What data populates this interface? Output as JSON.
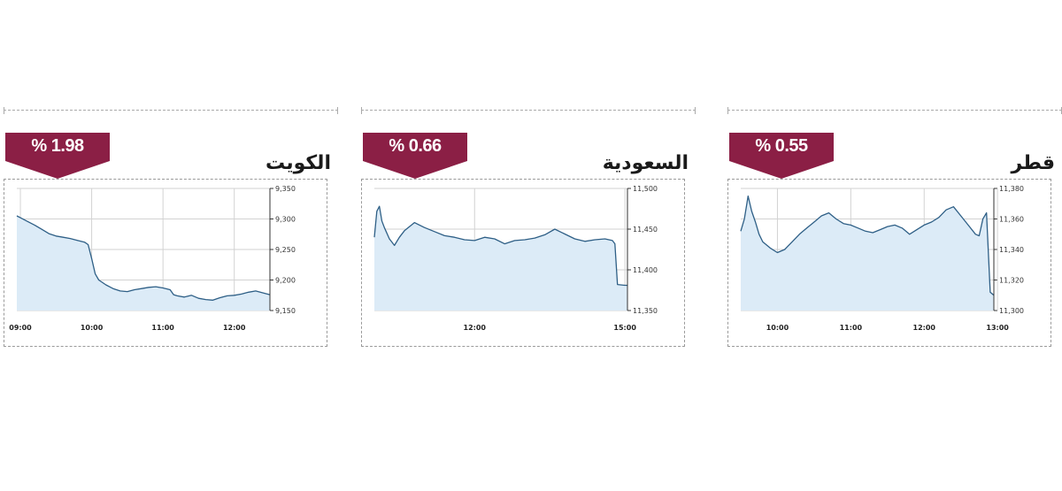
{
  "colors": {
    "badge": "#8b1f45",
    "line": "#2e5f86",
    "fill": "#dcebf7",
    "grid": "#d2d2d2",
    "axis": "#333333"
  },
  "chart_data": [
    {
      "type": "area",
      "title": "الكويت",
      "change_label": "% 1.98",
      "y_ticks": [
        "9,350",
        "9,300",
        "9,250",
        "9,200",
        "9,150"
      ],
      "ylim": [
        9150,
        9350
      ],
      "x_ticks": [
        "09:00",
        "10:00",
        "11:00",
        "12:00"
      ],
      "x_tick_hours": [
        9,
        10,
        11,
        12
      ],
      "xlim": [
        8.95,
        12.5
      ],
      "x": [
        8.95,
        9.0,
        9.1,
        9.2,
        9.3,
        9.4,
        9.5,
        9.6,
        9.7,
        9.8,
        9.9,
        9.95,
        10.0,
        10.05,
        10.1,
        10.2,
        10.3,
        10.4,
        10.5,
        10.6,
        10.7,
        10.8,
        10.9,
        11.0,
        11.1,
        11.15,
        11.2,
        11.3,
        11.4,
        11.5,
        11.6,
        11.7,
        11.8,
        11.9,
        12.0,
        12.1,
        12.2,
        12.3,
        12.4,
        12.5
      ],
      "values": [
        9305,
        9302,
        9296,
        9290,
        9283,
        9276,
        9272,
        9270,
        9268,
        9265,
        9262,
        9258,
        9235,
        9210,
        9200,
        9192,
        9186,
        9182,
        9181,
        9184,
        9186,
        9188,
        9189,
        9187,
        9184,
        9176,
        9174,
        9172,
        9175,
        9170,
        9168,
        9167,
        9171,
        9174,
        9175,
        9177,
        9180,
        9182,
        9179,
        9176
      ]
    },
    {
      "type": "area",
      "title": "السعودية",
      "change_label": "% 0.66",
      "y_ticks": [
        "11,500",
        "11,450",
        "11,400",
        "11,350"
      ],
      "ylim": [
        11350,
        11500
      ],
      "x_ticks": [
        "12:00",
        "15:00"
      ],
      "x_tick_hours": [
        12,
        15
      ],
      "xlim": [
        10.0,
        15.05
      ],
      "x": [
        10.0,
        10.05,
        10.1,
        10.15,
        10.2,
        10.3,
        10.4,
        10.5,
        10.6,
        10.8,
        11.0,
        11.2,
        11.4,
        11.6,
        11.8,
        12.0,
        12.2,
        12.4,
        12.6,
        12.8,
        13.0,
        13.2,
        13.4,
        13.6,
        13.8,
        14.0,
        14.2,
        14.4,
        14.6,
        14.75,
        14.8,
        14.85,
        15.0,
        15.05
      ],
      "values": [
        11440,
        11472,
        11478,
        11460,
        11452,
        11438,
        11430,
        11440,
        11448,
        11458,
        11452,
        11447,
        11442,
        11440,
        11437,
        11436,
        11440,
        11438,
        11432,
        11436,
        11437,
        11439,
        11443,
        11450,
        11444,
        11438,
        11435,
        11437,
        11438,
        11436,
        11432,
        11382,
        11381,
        11381
      ]
    },
    {
      "type": "area",
      "title": "قطر",
      "change_label": "% 0.55",
      "y_ticks": [
        "11,380",
        "11,360",
        "11,340",
        "11,320",
        "11,300"
      ],
      "ylim": [
        11300,
        11380
      ],
      "x_ticks": [
        "10:00",
        "11:00",
        "12:00",
        "13:00"
      ],
      "x_tick_hours": [
        10,
        11,
        12,
        13
      ],
      "xlim": [
        9.5,
        12.95
      ],
      "x": [
        9.5,
        9.55,
        9.6,
        9.65,
        9.7,
        9.75,
        9.8,
        9.9,
        10.0,
        10.1,
        10.2,
        10.3,
        10.4,
        10.5,
        10.6,
        10.7,
        10.8,
        10.9,
        11.0,
        11.1,
        11.2,
        11.3,
        11.4,
        11.5,
        11.6,
        11.7,
        11.8,
        11.9,
        12.0,
        12.1,
        12.2,
        12.3,
        12.4,
        12.5,
        12.6,
        12.7,
        12.75,
        12.8,
        12.85,
        12.9,
        12.95
      ],
      "values": [
        11352,
        11360,
        11375,
        11365,
        11358,
        11350,
        11345,
        11341,
        11338,
        11340,
        11345,
        11350,
        11354,
        11358,
        11362,
        11364,
        11360,
        11357,
        11356,
        11354,
        11352,
        11351,
        11353,
        11355,
        11356,
        11354,
        11350,
        11353,
        11356,
        11358,
        11361,
        11366,
        11368,
        11362,
        11356,
        11350,
        11349,
        11360,
        11364,
        11312,
        11310
      ]
    }
  ]
}
